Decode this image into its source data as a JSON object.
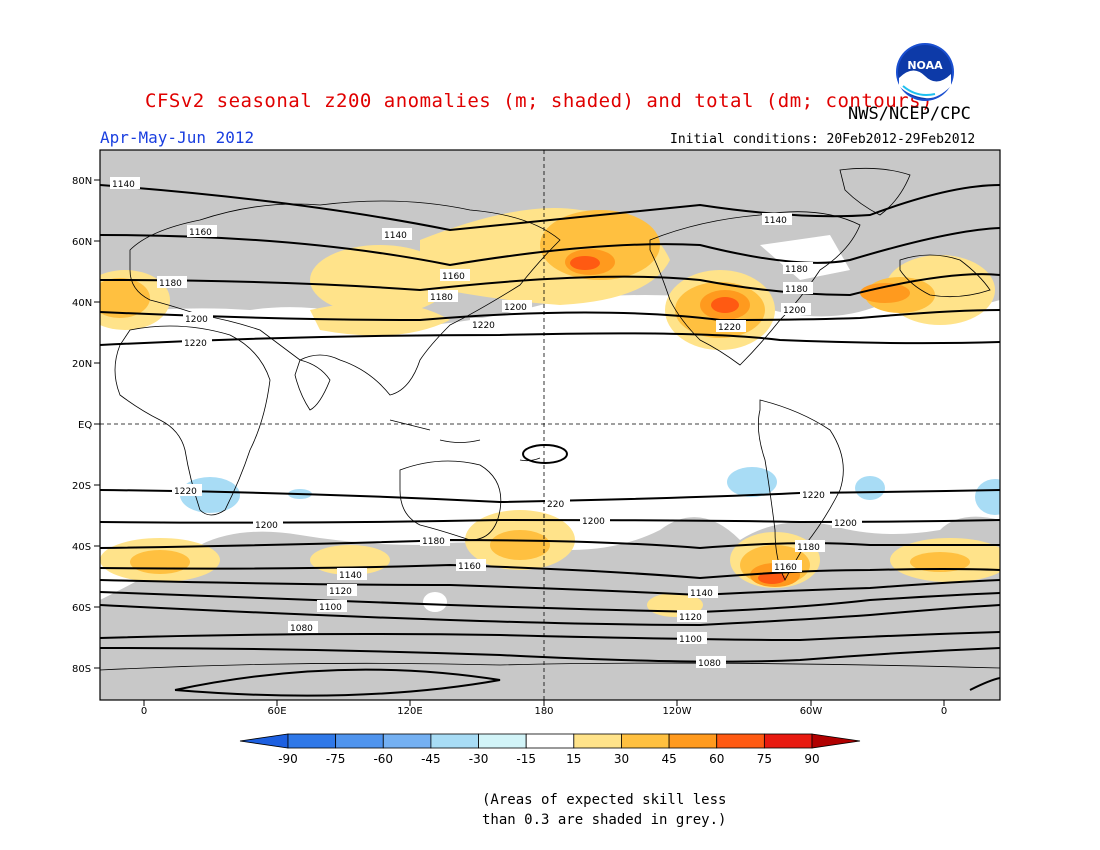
{
  "header": {
    "title": "CFSv2 seasonal z200 anomalies (m; shaded) and total (dm; contours)",
    "agency": "NWS/NCEP/CPC",
    "season": "Apr-May-Jun 2012",
    "initial_conditions": "Initial conditions: 20Feb2012-29Feb2012",
    "logo_text": "NOAA"
  },
  "map": {
    "lat_ticks": [
      "80N",
      "60N",
      "40N",
      "20N",
      "EQ",
      "20S",
      "40S",
      "60S",
      "80S"
    ],
    "lon_ticks": [
      "0",
      "60E",
      "120E",
      "180",
      "120W",
      "60W",
      "0"
    ]
  },
  "colorbar": {
    "labels": [
      "-90",
      "-75",
      "-60",
      "-45",
      "-30",
      "-15",
      "15",
      "30",
      "45",
      "60",
      "75",
      "90"
    ],
    "colors": [
      "#1c5fe0",
      "#2f78e8",
      "#4f94ee",
      "#74b0f2",
      "#a8dcf5",
      "#d2f4f8",
      "#ffffff",
      "#ffe38a",
      "#ffc040",
      "#ff9a1e",
      "#ff5a12",
      "#e81a10",
      "#b00000"
    ]
  },
  "contours": {
    "labels": [
      "1140",
      "1160",
      "1180",
      "1200",
      "1220",
      "1220",
      "1200",
      "1180",
      "1160",
      "1140",
      "1120",
      "1100",
      "1080",
      "1140",
      "1160",
      "1180",
      "1200",
      "1220",
      "1140",
      "1180",
      "1180",
      "1200",
      "1220",
      "1220",
      "220",
      "1200",
      "1200",
      "1180",
      "1160",
      "1140",
      "1120",
      "1100",
      "1080"
    ]
  },
  "note": {
    "line1": "(Areas of expected skill less",
    "line2": "than 0.3 are shaded in grey.)"
  }
}
